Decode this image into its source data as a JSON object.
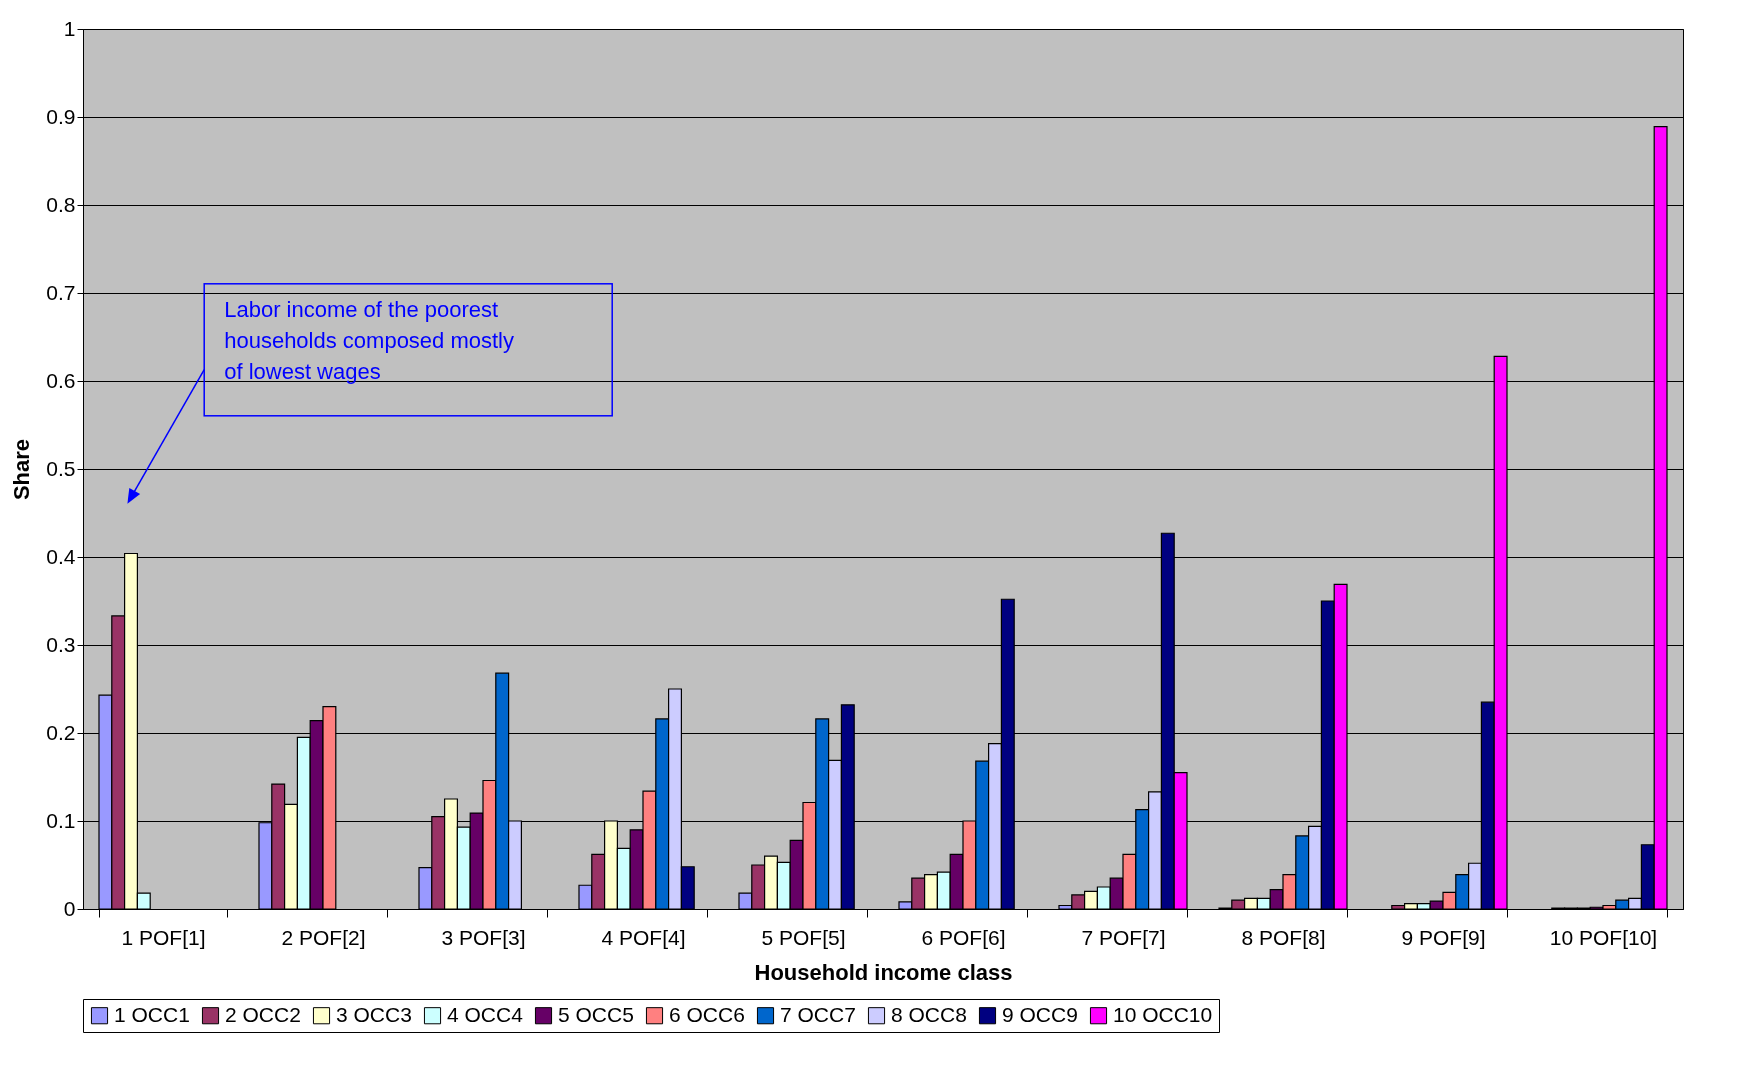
{
  "chart_data": {
    "type": "bar",
    "xlabel": "Household income class",
    "ylabel": "Share",
    "categories": [
      "1 POF[1]",
      "2 POF[2]",
      "3 POF[3]",
      "4 POF[4]",
      "5 POF[5]",
      "6 POF[6]",
      "7 POF[7]",
      "8 POF[8]",
      "9 POF[9]",
      "10 POF[10]"
    ],
    "series": [
      {
        "name": "1 OCC1",
        "color": "#9999ff",
        "values": [
          0.243,
          0.098,
          0.047,
          0.027,
          0.018,
          0.008,
          0.004,
          0.001,
          null,
          null
        ]
      },
      {
        "name": "2 OCC2",
        "color": "#993366",
        "values": [
          0.333,
          0.142,
          0.105,
          0.062,
          0.05,
          0.035,
          0.016,
          0.01,
          0.004,
          0.001
        ]
      },
      {
        "name": "3 OCC3",
        "color": "#ffffcc",
        "values": [
          0.404,
          0.119,
          0.125,
          0.1,
          0.06,
          0.039,
          0.02,
          0.012,
          0.006,
          0.001
        ]
      },
      {
        "name": "4 OCC4",
        "color": "#ccffff",
        "values": [
          0.018,
          0.195,
          0.093,
          0.069,
          0.053,
          0.042,
          0.025,
          0.012,
          0.006,
          0.001
        ]
      },
      {
        "name": "5 OCC5",
        "color": "#660066",
        "values": [
          null,
          0.214,
          0.109,
          0.09,
          0.078,
          0.062,
          0.035,
          0.022,
          0.009,
          0.002
        ]
      },
      {
        "name": "6 OCC6",
        "color": "#ff8080",
        "values": [
          null,
          0.23,
          0.146,
          0.134,
          0.121,
          0.1,
          0.062,
          0.039,
          0.019,
          0.004
        ]
      },
      {
        "name": "7 OCC7",
        "color": "#0066cc",
        "values": [
          null,
          null,
          0.268,
          0.216,
          0.216,
          0.168,
          0.113,
          0.083,
          0.039,
          0.01
        ]
      },
      {
        "name": "8 OCC8",
        "color": "#ccccff",
        "values": [
          null,
          null,
          0.1,
          0.25,
          0.169,
          0.188,
          0.133,
          0.094,
          0.052,
          0.012
        ]
      },
      {
        "name": "9 OCC9",
        "color": "#000080",
        "values": [
          null,
          null,
          null,
          0.048,
          0.232,
          0.352,
          0.427,
          0.35,
          0.235,
          0.073
        ]
      },
      {
        "name": "10 OCC10",
        "color": "#ff00ff",
        "values": [
          null,
          null,
          null,
          null,
          null,
          null,
          0.155,
          0.369,
          0.628,
          0.889
        ]
      }
    ],
    "ylim": [
      0,
      1
    ],
    "yticks": [
      0,
      0.1,
      0.2,
      0.3,
      0.4,
      0.5,
      0.6,
      0.7,
      0.8,
      0.9,
      1
    ],
    "grid": "y",
    "legend": "bottom",
    "annotations": [
      "Labor income of the poorest households composed mostly of lowest wages"
    ]
  }
}
